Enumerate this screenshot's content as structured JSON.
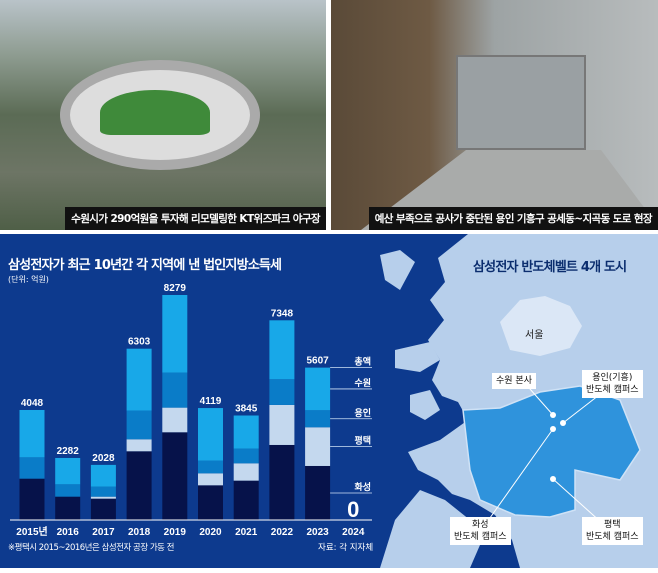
{
  "photos": [
    {
      "caption": "수원시가 290억원을 투자해 리모델링한 KT위즈파크 야구장"
    },
    {
      "caption": "예산 부족으로 공사가 중단된 용인 기흥구 공세동~지곡동 도로 현장"
    }
  ],
  "chart_data": {
    "type": "bar",
    "stacked": true,
    "title": "삼성전자가 최근 10년간 각 지역에 낸 법인지방소득세",
    "unit": "(단위: 억원)",
    "categories": [
      "2015년",
      "2016",
      "2017",
      "2018",
      "2019",
      "2020",
      "2021",
      "2022",
      "2023",
      "2024"
    ],
    "totals": [
      4048,
      2282,
      2028,
      6303,
      8279,
      4119,
      3845,
      7348,
      5607,
      0
    ],
    "total_label": "총액",
    "series": [
      {
        "name": "화성",
        "color": "#06124a",
        "values": [
          1521,
          859,
          785,
          2528,
          3227,
          1276,
          1448,
          2761,
          1988,
          0
        ]
      },
      {
        "name": "평택",
        "color": "#c4d8ee",
        "values": [
          0,
          0,
          74,
          442,
          908,
          442,
          638,
          1473,
          1424,
          0
        ]
      },
      {
        "name": "용인",
        "color": "#0a7cc8",
        "values": [
          785,
          454,
          368,
          1055,
          1288,
          466,
          540,
          945,
          626,
          0
        ]
      },
      {
        "name": "수원",
        "color": "#18a8e8",
        "values": [
          1742,
          969,
          801,
          2278,
          2856,
          1935,
          1219,
          2169,
          1569,
          0
        ]
      }
    ],
    "ylim": [
      0,
      8279
    ],
    "footnote": "※평택시 2015~2016년은 삼성전자 공장 가동 전",
    "source": "자료: 각 지자체"
  },
  "map": {
    "title": "삼성전자 반도체벨트 4개 도시",
    "seoul": "서울",
    "labels": {
      "suwon": "수원 본사",
      "yongin1": "용인(기흥)",
      "yongin2": "반도체 캠퍼스",
      "hwaseong1": "화성",
      "hwaseong2": "반도체 캠퍼스",
      "pyeongtaek1": "평택",
      "pyeongtaek2": "반도체 캠퍼스"
    }
  }
}
